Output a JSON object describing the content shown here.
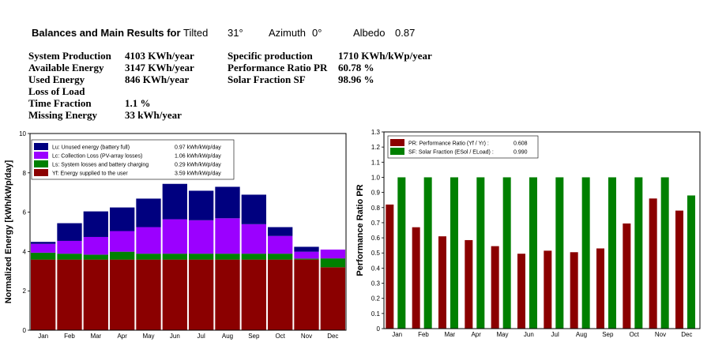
{
  "header": {
    "title": "Balances and Main Results for",
    "tilt_label": "Tilted",
    "tilt_value": "31°",
    "azimuth_label": "Azimuth",
    "azimuth_value": "0°",
    "albedo_label": "Albedo",
    "albedo_value": "0.87"
  },
  "results_left": [
    {
      "label": "System Production",
      "value": "4103 KWh/year"
    },
    {
      "label": "Available Energy",
      "value": "3147 KWh/year"
    },
    {
      "label": "Used Energy",
      "value": "846 KWh/year"
    },
    {
      "label": "Loss of Load",
      "value": ""
    },
    {
      "label": "Time Fraction",
      "value": "1.1 %"
    },
    {
      "label": "Missing Energy",
      "value": "33 kWh/year"
    }
  ],
  "results_right": [
    {
      "label": "Specific production",
      "value": "1710 KWh/kWp/year"
    },
    {
      "label": "Performance Ratio PR",
      "value": "60.78 %"
    },
    {
      "label": "Solar Fraction SF",
      "value": "98.96 %"
    }
  ],
  "chart_data": [
    {
      "type": "bar",
      "stacked": true,
      "ylabel": "Normalized Energy [kWh/kWp/day]",
      "ylim": [
        0,
        10
      ],
      "yticks": [
        "0",
        "2",
        "4",
        "6",
        "8",
        "10"
      ],
      "categories": [
        "Jan",
        "Feb",
        "Mar",
        "Apr",
        "May",
        "Jun",
        "Jul",
        "Aug",
        "Sep",
        "Oct",
        "Nov",
        "Dec"
      ],
      "legend_position": "top-left",
      "series": [
        {
          "name": "Yf: Energy supplied to the user",
          "legend_value": "3.59 kWh/kWp/day",
          "color": "#8b0000",
          "values": [
            3.59,
            3.59,
            3.59,
            3.59,
            3.59,
            3.59,
            3.59,
            3.59,
            3.59,
            3.59,
            3.59,
            3.2
          ]
        },
        {
          "name": "Ls: System losses and battery charging",
          "legend_value": "0.29 kWh/kWp/day",
          "color": "#008000",
          "values": [
            0.35,
            0.3,
            0.25,
            0.4,
            0.3,
            0.3,
            0.3,
            0.3,
            0.3,
            0.3,
            0.05,
            0.45
          ]
        },
        {
          "name": "Lc: Collection Loss (PV-array losses)",
          "legend_value": "1.06 kWh/kWp/day",
          "color": "#9b00ff",
          "values": [
            0.45,
            0.65,
            0.9,
            1.05,
            1.35,
            1.75,
            1.7,
            1.8,
            1.5,
            0.9,
            0.35,
            0.45
          ]
        },
        {
          "name": "Lu: Unused energy (battery full)",
          "legend_value": "0.97 kWh/kWp/day",
          "color": "#00007f",
          "values": [
            0.1,
            0.9,
            1.3,
            1.2,
            1.45,
            1.8,
            1.5,
            1.6,
            1.5,
            0.45,
            0.25,
            0.0
          ]
        }
      ]
    },
    {
      "type": "bar",
      "ylabel": "Performance Ratio PR",
      "ylim": [
        0,
        1.3
      ],
      "yticks": [
        "0",
        "0.1",
        "0.2",
        "0.3",
        "0.4",
        "0.5",
        "0.6",
        "0.7",
        "0.8",
        "0.9",
        "1.0",
        "1.1",
        "1.2",
        "1.3"
      ],
      "categories": [
        "Jan",
        "Feb",
        "Mar",
        "Apr",
        "May",
        "Jun",
        "Jul",
        "Aug",
        "Sep",
        "Oct",
        "Nov",
        "Dec"
      ],
      "legend_position": "top-left",
      "series": [
        {
          "name": "PR: Performance Ratio (Yf / Yr) :",
          "legend_value": "0.608",
          "color": "#8b0000",
          "values": [
            0.82,
            0.67,
            0.61,
            0.585,
            0.545,
            0.495,
            0.515,
            0.505,
            0.53,
            0.695,
            0.86,
            0.78
          ]
        },
        {
          "name": "SF: Solar Fraction (ESol / ELoad) :",
          "legend_value": "0.990",
          "color": "#008000",
          "values": [
            1.0,
            1.0,
            1.0,
            1.0,
            1.0,
            1.0,
            1.0,
            1.0,
            1.0,
            1.0,
            1.0,
            0.88
          ]
        }
      ]
    }
  ]
}
